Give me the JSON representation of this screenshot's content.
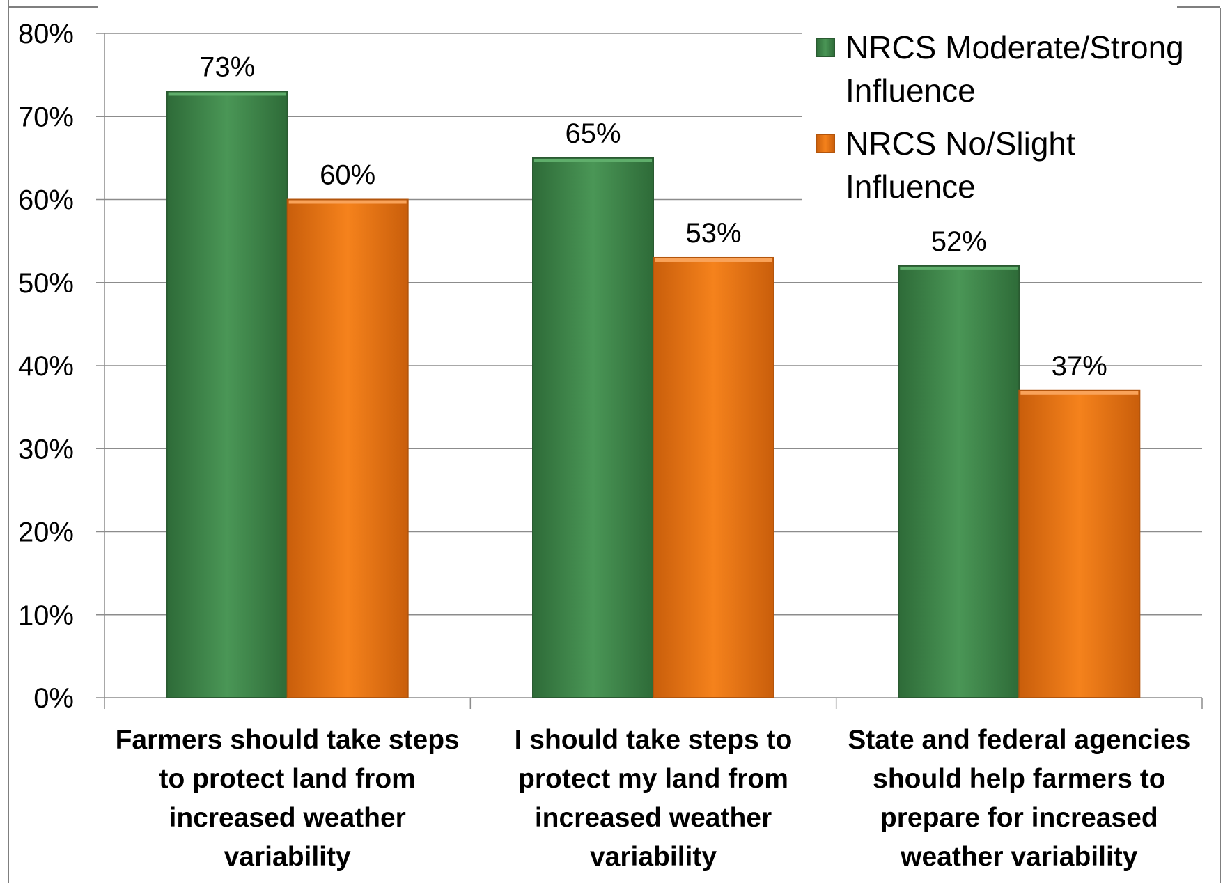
{
  "chart_data": {
    "type": "bar",
    "title": "",
    "xlabel": "",
    "ylabel": "",
    "ylim": [
      0,
      0.8
    ],
    "yticks": [
      "0%",
      "10%",
      "20%",
      "30%",
      "40%",
      "50%",
      "60%",
      "70%",
      "80%"
    ],
    "grid": true,
    "legend_position": "top-right",
    "categories": [
      [
        "Farmers should take steps",
        "to protect land from",
        "increased weather",
        "variability"
      ],
      [
        "I should take steps to",
        "protect my land from",
        "increased weather",
        "variability"
      ],
      [
        "State and federal agencies",
        "should help farmers to",
        "prepare for increased",
        "weather variability"
      ]
    ],
    "series": [
      {
        "name": "NRCS Moderate/Strong Influence",
        "name_lines": [
          "NRCS Moderate/Strong",
          "Influence"
        ],
        "color": "#3f8a4b",
        "values": [
          0.73,
          0.65,
          0.52
        ],
        "labels": [
          "73%",
          "65%",
          "52%"
        ]
      },
      {
        "name": "NRCS No/Slight Influence",
        "name_lines": [
          "NRCS No/Slight",
          "Influence"
        ],
        "color": "#f07a17",
        "values": [
          0.6,
          0.53,
          0.37
        ],
        "labels": [
          "60%",
          "53%",
          "37%"
        ]
      }
    ]
  }
}
